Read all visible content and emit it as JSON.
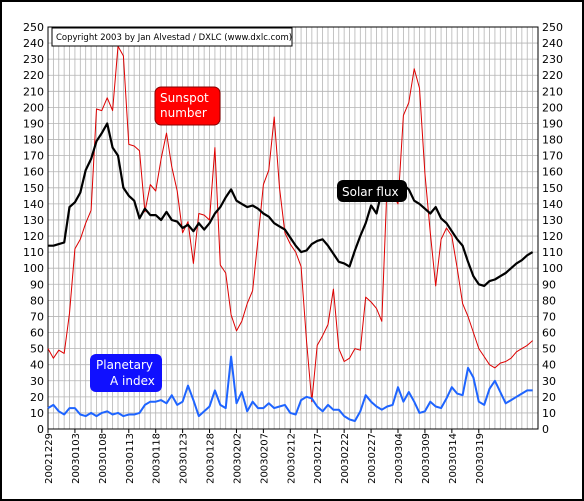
{
  "chart_data": {
    "type": "line",
    "copyright": "Copyright 2003 by Jan Alvestad / DXLC (www.dxlc.com)",
    "ylim": [
      0,
      250
    ],
    "ytick_step": 10,
    "grid": true,
    "y_ticks": [
      "0",
      "10",
      "20",
      "30",
      "40",
      "50",
      "60",
      "70",
      "80",
      "90",
      "100",
      "110",
      "120",
      "130",
      "140",
      "150",
      "160",
      "170",
      "180",
      "190",
      "200",
      "210",
      "220",
      "230",
      "240",
      "250"
    ],
    "x_ticks": [
      "20021229",
      "20030103",
      "20030108",
      "20030113",
      "20030118",
      "20030123",
      "20030128",
      "20030202",
      "20030207",
      "20030212",
      "20030217",
      "20030222",
      "20030227",
      "20030304",
      "20030309",
      "20030314",
      "20030319"
    ],
    "colors": {
      "sunspot": "#dd0000",
      "solar_flux": "#000000",
      "a_index": "#1e64ff",
      "grid": "#b4b4b4"
    },
    "series": [
      {
        "name": "Sunspot number",
        "key": "sunspot",
        "x": [
          0,
          1,
          2,
          3,
          4,
          5,
          6,
          7,
          8,
          9,
          10,
          11,
          12,
          13,
          14,
          15,
          16,
          17,
          18,
          19,
          20,
          21,
          22,
          23,
          24,
          25,
          26,
          27,
          28,
          29,
          30,
          31,
          32,
          33,
          34,
          35,
          36,
          37,
          38,
          39,
          40,
          41,
          42,
          43,
          44,
          45,
          46,
          47,
          48,
          49,
          50,
          51,
          52,
          53,
          54,
          55,
          56,
          57,
          58,
          59,
          60,
          61,
          62,
          63,
          64,
          65,
          66,
          67,
          68,
          69,
          70,
          71,
          72,
          73,
          74,
          75,
          76,
          77,
          78,
          79,
          80,
          81,
          82,
          83,
          84,
          85,
          86,
          87,
          88,
          89,
          90
        ],
        "values": [
          50,
          44,
          49,
          47,
          72,
          112,
          118,
          128,
          136,
          199,
          198,
          206,
          198,
          238,
          232,
          177,
          176,
          173,
          135,
          152,
          148,
          168,
          184,
          163,
          148,
          122,
          129,
          103,
          134,
          133,
          130,
          175,
          102,
          97,
          71,
          61,
          67,
          78,
          86,
          118,
          152,
          161,
          194,
          150,
          122,
          115,
          110,
          101,
          55,
          17,
          52,
          58,
          65,
          87,
          50,
          42,
          44,
          50,
          49,
          82,
          79,
          75,
          67,
          154,
          146,
          140,
          195,
          203,
          224,
          212,
          159,
          122,
          89,
          118,
          125,
          120,
          100,
          78,
          70,
          60,
          50,
          45,
          40,
          38,
          41,
          42,
          44,
          48,
          50,
          52,
          55
        ],
        "x_max_day": 91
      },
      {
        "name": "Solar flux",
        "key": "solar_flux",
        "x": [
          0,
          1,
          2,
          3,
          4,
          5,
          6,
          7,
          8,
          9,
          10,
          11,
          12,
          13,
          14,
          15,
          16,
          17,
          18,
          19,
          20,
          21,
          22,
          23,
          24,
          25,
          26,
          27,
          28,
          29,
          30,
          31,
          32,
          33,
          34,
          35,
          36,
          37,
          38,
          39,
          40,
          41,
          42,
          43,
          44,
          45,
          46,
          47,
          48,
          49,
          50,
          51,
          52,
          53,
          54,
          55,
          56,
          57,
          58,
          59,
          60,
          61,
          62,
          63,
          64,
          65,
          66,
          67,
          68,
          69,
          70,
          71,
          72,
          73,
          74,
          75,
          76,
          77,
          78,
          79,
          80,
          81,
          82,
          83,
          84,
          85,
          86,
          87,
          88,
          89,
          90
        ],
        "values": [
          114,
          114,
          115,
          116,
          138,
          141,
          147,
          161,
          168,
          179,
          184,
          190,
          175,
          170,
          150,
          145,
          142,
          131,
          137,
          133,
          133,
          130,
          135,
          130,
          129,
          125,
          127,
          123,
          128,
          124,
          128,
          134,
          138,
          144,
          149,
          142,
          140,
          138,
          139,
          137,
          134,
          132,
          128,
          126,
          124,
          119,
          114,
          110,
          111,
          115,
          117,
          118,
          114,
          109,
          104,
          103,
          101,
          111,
          120,
          128,
          139,
          134,
          148,
          146,
          148,
          150,
          152,
          149,
          142,
          140,
          137,
          134,
          138,
          131,
          128,
          123,
          118,
          114,
          104,
          95,
          90,
          89,
          92,
          93,
          95,
          97,
          100,
          103,
          105,
          108,
          110
        ],
        "x_max_day": 91
      },
      {
        "name": "Planetary A index",
        "key": "a_index",
        "x": [
          0,
          1,
          2,
          3,
          4,
          5,
          6,
          7,
          8,
          9,
          10,
          11,
          12,
          13,
          14,
          15,
          16,
          17,
          18,
          19,
          20,
          21,
          22,
          23,
          24,
          25,
          26,
          27,
          28,
          29,
          30,
          31,
          32,
          33,
          34,
          35,
          36,
          37,
          38,
          39,
          40,
          41,
          42,
          43,
          44,
          45,
          46,
          47,
          48,
          49,
          50,
          51,
          52,
          53,
          54,
          55,
          56,
          57,
          58,
          59,
          60,
          61,
          62,
          63,
          64,
          65,
          66,
          67,
          68,
          69,
          70,
          71,
          72,
          73,
          74,
          75,
          76,
          77,
          78,
          79,
          80,
          81,
          82,
          83,
          84,
          85,
          86,
          87,
          88,
          89,
          90
        ],
        "values": [
          13,
          15,
          11,
          9,
          13,
          13,
          9,
          8,
          10,
          8,
          10,
          11,
          9,
          10,
          8,
          9,
          9,
          10,
          15,
          17,
          17,
          18,
          16,
          21,
          15,
          17,
          27,
          18,
          8,
          11,
          14,
          24,
          15,
          13,
          45,
          16,
          23,
          11,
          17,
          13,
          13,
          16,
          13,
          14,
          15,
          10,
          9,
          18,
          20,
          19,
          14,
          11,
          15,
          12,
          12,
          8,
          6,
          5,
          11,
          21,
          17,
          14,
          12,
          14,
          15,
          26,
          17,
          23,
          17,
          10,
          11,
          17,
          14,
          13,
          19,
          26,
          22,
          21,
          38,
          32,
          17,
          15,
          25,
          30,
          23,
          16,
          18,
          20,
          22,
          24,
          24
        ],
        "x_max_day": 91
      }
    ],
    "labels": {
      "sunspot_line1": "Sunspot",
      "sunspot_line2": "number",
      "solar_flux": "Solar flux",
      "a_index_line1": "Planetary",
      "a_index_line2": "A index"
    }
  }
}
